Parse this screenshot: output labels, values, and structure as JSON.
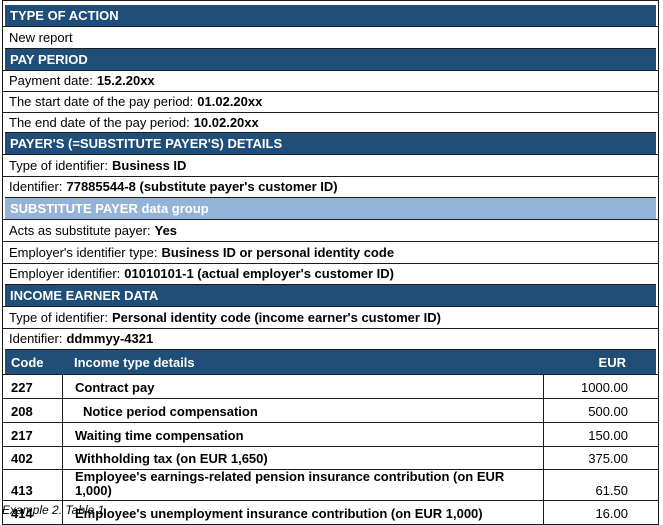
{
  "colors": {
    "band_dark": "#1F4E79",
    "band_light": "#95B3D7",
    "border": "#1B1B1B"
  },
  "type_of_action": {
    "header": "TYPE OF ACTION",
    "value": "New report"
  },
  "pay_period": {
    "header": "PAY PERIOD",
    "rows": [
      {
        "label": "Payment date:",
        "value": "15.2.20xx"
      },
      {
        "label": "The start date of the pay period:",
        "value": "01.02.20xx"
      },
      {
        "label": "The end date of the pay period:",
        "value": "10.02.20xx"
      }
    ]
  },
  "payer_details": {
    "header": "PAYER'S (=SUBSTITUTE PAYER'S) DETAILS",
    "rows": [
      {
        "label": "Type of identifier:",
        "value": "Business ID"
      },
      {
        "label": "Identifier:",
        "value": "77885544-8 (substitute payer's customer ID)"
      }
    ]
  },
  "substitute_payer": {
    "header": "SUBSTITUTE PAYER data group",
    "rows": [
      {
        "label": "Acts as substitute payer:",
        "value": "Yes"
      },
      {
        "label": "Employer's identifier type:",
        "value": "Business ID or personal identity code"
      },
      {
        "label": "Employer identifier:",
        "value": "01010101-1 (actual employer's customer ID)"
      }
    ]
  },
  "income_earner": {
    "header": "INCOME EARNER DATA",
    "rows": [
      {
        "label": "Type of identifier:",
        "value": "Personal identity code (income earner's customer ID)"
      },
      {
        "label": "Identifier:",
        "value": "ddmmyy-4321"
      }
    ]
  },
  "income_table": {
    "columns": [
      "Code",
      "Income type details",
      "EUR"
    ],
    "rows": [
      {
        "code": "227",
        "label": "Contract pay",
        "amount": "1000.00"
      },
      {
        "code": "208",
        "label": "Notice period compensation",
        "amount": "500.00"
      },
      {
        "code": "217",
        "label": "Waiting time compensation",
        "amount": "150.00"
      },
      {
        "code": "402",
        "label": "Withholding tax (on EUR 1,650)",
        "amount": "375.00"
      },
      {
        "code": "413",
        "label": "Employee's earnings-related pension insurance contribution (on EUR 1,000)",
        "amount": "61.50"
      },
      {
        "code": "414",
        "label": "Employee's unemployment insurance contribution (on EUR 1,000)",
        "amount": "16.00"
      }
    ]
  },
  "caption": "Example 2. Table 1."
}
